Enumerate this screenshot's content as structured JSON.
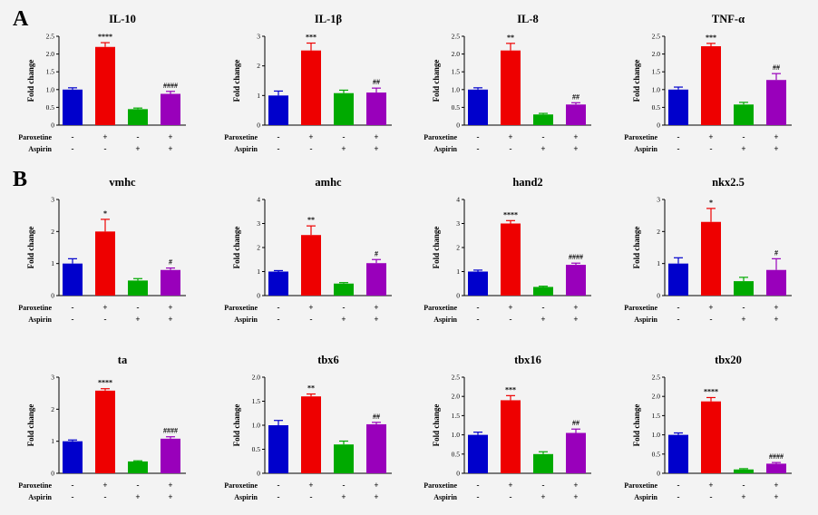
{
  "figure": {
    "panel_labels": [
      "A",
      "B"
    ],
    "ylabel": "Fold change",
    "row_labels": [
      "Paroxetine",
      "Aspirin"
    ],
    "conditions": [
      {
        "paroxetine": "-",
        "aspirin": "-"
      },
      {
        "paroxetine": "+",
        "aspirin": "-"
      },
      {
        "paroxetine": "-",
        "aspirin": "+"
      },
      {
        "paroxetine": "+",
        "aspirin": "+"
      }
    ],
    "colors": [
      "#0000cc",
      "#ee0000",
      "#00aa00",
      "#9900bb"
    ]
  },
  "chart_data": [
    {
      "type": "bar",
      "panel": "A",
      "title": "IL-10",
      "ylabel": "Fold change",
      "ylim": [
        0,
        2.5
      ],
      "yticks": [
        "0",
        "0.5",
        "1.0",
        "1.5",
        "2.0",
        "2.5"
      ],
      "values": [
        1.0,
        2.2,
        0.45,
        0.88
      ],
      "errors": [
        0.05,
        0.12,
        0.03,
        0.07
      ],
      "annotations": [
        "",
        "****",
        "",
        "####"
      ]
    },
    {
      "type": "bar",
      "panel": "A",
      "title": "IL-1β",
      "ylabel": "Fold change",
      "ylim": [
        0,
        3
      ],
      "yticks": [
        "0",
        "1",
        "2",
        "3"
      ],
      "values": [
        1.0,
        2.52,
        1.08,
        1.1
      ],
      "errors": [
        0.15,
        0.25,
        0.1,
        0.15
      ],
      "annotations": [
        "",
        "***",
        "",
        "##"
      ]
    },
    {
      "type": "bar",
      "panel": "A",
      "title": "IL-8",
      "ylabel": "Fold change",
      "ylim": [
        0,
        2.5
      ],
      "yticks": [
        "0",
        "0.5",
        "1.0",
        "1.5",
        "2.0",
        "2.5"
      ],
      "values": [
        1.0,
        2.1,
        0.3,
        0.58
      ],
      "errors": [
        0.05,
        0.2,
        0.03,
        0.05
      ],
      "annotations": [
        "",
        "**",
        "",
        "##"
      ]
    },
    {
      "type": "bar",
      "panel": "A",
      "title": "TNF-α",
      "ylabel": "Fold change",
      "ylim": [
        0,
        2.5
      ],
      "yticks": [
        "0",
        "0.5",
        "1.0",
        "1.5",
        "2.0",
        "2.5"
      ],
      "values": [
        1.0,
        2.22,
        0.58,
        1.27
      ],
      "errors": [
        0.07,
        0.08,
        0.06,
        0.18
      ],
      "annotations": [
        "",
        "***",
        "",
        "##"
      ]
    },
    {
      "type": "bar",
      "panel": "B",
      "title": "vmhc",
      "ylabel": "Fold change",
      "ylim": [
        0,
        3
      ],
      "yticks": [
        "0",
        "1",
        "2",
        "3"
      ],
      "values": [
        1.0,
        2.0,
        0.47,
        0.8
      ],
      "errors": [
        0.15,
        0.38,
        0.06,
        0.06
      ],
      "annotations": [
        "",
        "*",
        "",
        "#"
      ]
    },
    {
      "type": "bar",
      "panel": "B",
      "title": "amhc",
      "ylabel": "Fold change",
      "ylim": [
        0,
        4
      ],
      "yticks": [
        "0",
        "1",
        "2",
        "3",
        "4"
      ],
      "values": [
        1.0,
        2.52,
        0.5,
        1.35
      ],
      "errors": [
        0.04,
        0.38,
        0.04,
        0.15
      ],
      "annotations": [
        "",
        "**",
        "",
        "#"
      ]
    },
    {
      "type": "bar",
      "panel": "B",
      "title": "hand2",
      "ylabel": "Fold change",
      "ylim": [
        0,
        4
      ],
      "yticks": [
        "0",
        "1",
        "2",
        "3",
        "4"
      ],
      "values": [
        1.0,
        3.0,
        0.36,
        1.28
      ],
      "errors": [
        0.06,
        0.12,
        0.03,
        0.07
      ],
      "annotations": [
        "",
        "****",
        "",
        "####"
      ]
    },
    {
      "type": "bar",
      "panel": "B",
      "title": "nkx2.5",
      "ylabel": "Fold change",
      "ylim": [
        0,
        3
      ],
      "yticks": [
        "0",
        "1",
        "2",
        "3"
      ],
      "values": [
        1.0,
        2.3,
        0.45,
        0.8
      ],
      "errors": [
        0.18,
        0.42,
        0.12,
        0.35
      ],
      "annotations": [
        "",
        "*",
        "",
        "#"
      ]
    },
    {
      "type": "bar",
      "panel": "B",
      "title": "ta",
      "ylabel": "Fold change",
      "ylim": [
        0,
        3
      ],
      "yticks": [
        "0",
        "1",
        "2",
        "3"
      ],
      "values": [
        1.0,
        2.58,
        0.37,
        1.08
      ],
      "errors": [
        0.04,
        0.06,
        0.02,
        0.06
      ],
      "annotations": [
        "",
        "****",
        "",
        "####"
      ]
    },
    {
      "type": "bar",
      "panel": "B",
      "title": "tbx6",
      "ylabel": "Fold change",
      "ylim": [
        0,
        2
      ],
      "yticks": [
        "0",
        "0.5",
        "1.0",
        "1.5",
        "2.0"
      ],
      "values": [
        1.0,
        1.6,
        0.6,
        1.02
      ],
      "errors": [
        0.1,
        0.05,
        0.07,
        0.04
      ],
      "annotations": [
        "",
        "**",
        "",
        "##"
      ]
    },
    {
      "type": "bar",
      "panel": "B",
      "title": "tbx16",
      "ylabel": "Fold change",
      "ylim": [
        0,
        2.5
      ],
      "yticks": [
        "0",
        "0.5",
        "1.0",
        "1.5",
        "2.0",
        "2.5"
      ],
      "values": [
        1.0,
        1.9,
        0.5,
        1.05
      ],
      "errors": [
        0.07,
        0.12,
        0.06,
        0.1
      ],
      "annotations": [
        "",
        "***",
        "",
        "##"
      ]
    },
    {
      "type": "bar",
      "panel": "B",
      "title": "tbx20",
      "ylabel": "Fold change",
      "ylim": [
        0,
        2.5
      ],
      "yticks": [
        "0",
        "0.5",
        "1.0",
        "1.5",
        "2.0",
        "2.5"
      ],
      "values": [
        1.0,
        1.87,
        0.1,
        0.25
      ],
      "errors": [
        0.05,
        0.1,
        0.02,
        0.03
      ],
      "annotations": [
        "",
        "****",
        "",
        "####"
      ]
    }
  ]
}
